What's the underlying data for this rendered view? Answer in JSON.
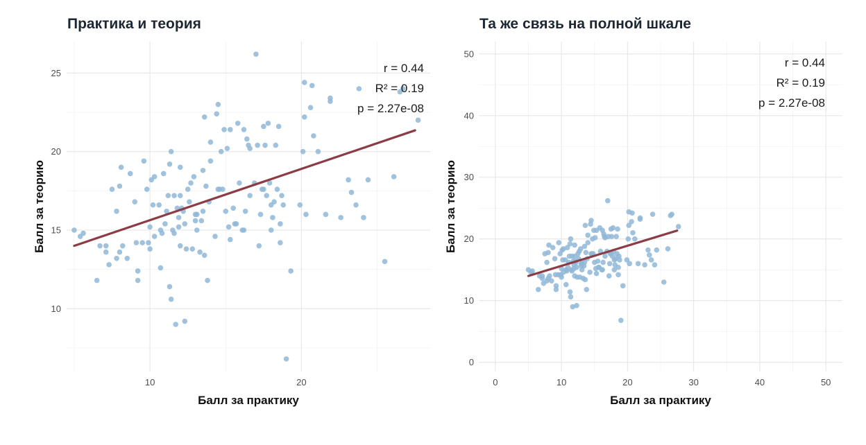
{
  "chart_data": [
    {
      "type": "scatter",
      "title": "Практика и теория",
      "xlabel": "Балл за практику",
      "ylabel": "Балл за теорию",
      "xlim": [
        4.5,
        28.5
      ],
      "ylim": [
        6,
        27
      ],
      "xticks": [
        10,
        20
      ],
      "yticks": [
        10,
        15,
        20,
        25
      ],
      "stats": [
        "r = 0.44",
        "R² = 0.19",
        "p = 2.27e-08"
      ],
      "fit_line": {
        "x": [
          5,
          27.5
        ],
        "y": [
          14.0,
          21.35
        ]
      },
      "points": [
        [
          5,
          15
        ],
        [
          5.4,
          14.6
        ],
        [
          5.6,
          14.8
        ],
        [
          6.5,
          11.8
        ],
        [
          6.7,
          14
        ],
        [
          7.1,
          13.6
        ],
        [
          7.1,
          14
        ],
        [
          7.3,
          12.8
        ],
        [
          7.5,
          17.6
        ],
        [
          7.8,
          13.2
        ],
        [
          7.8,
          16.2
        ],
        [
          8,
          17.8
        ],
        [
          8,
          13.6
        ],
        [
          8.1,
          19
        ],
        [
          8.2,
          14
        ],
        [
          8.5,
          13.2
        ],
        [
          8.7,
          18.6
        ],
        [
          9,
          16.8
        ],
        [
          9.1,
          14.2
        ],
        [
          9.2,
          12.4
        ],
        [
          9.2,
          11.8
        ],
        [
          9.5,
          14.2
        ],
        [
          9.6,
          19.4
        ],
        [
          9.8,
          17.6
        ],
        [
          9.9,
          14.2
        ],
        [
          10,
          15.2
        ],
        [
          10,
          13.8
        ],
        [
          10.1,
          18.2
        ],
        [
          10.2,
          16.6
        ],
        [
          10.3,
          18.4
        ],
        [
          10.3,
          14.6
        ],
        [
          10.6,
          16.6
        ],
        [
          10.7,
          12.6
        ],
        [
          10.7,
          15
        ],
        [
          10.8,
          14.8
        ],
        [
          10.9,
          18.6
        ],
        [
          11,
          15.4
        ],
        [
          11.1,
          16.2
        ],
        [
          11.2,
          17.2
        ],
        [
          11.3,
          11.4
        ],
        [
          11.3,
          19.2
        ],
        [
          11.4,
          10.6
        ],
        [
          11.4,
          20
        ],
        [
          11.5,
          15
        ],
        [
          11.6,
          14.8
        ],
        [
          11.6,
          17.2
        ],
        [
          11.7,
          9
        ],
        [
          11.8,
          16.4
        ],
        [
          11.9,
          15.2
        ],
        [
          11.9,
          15.8
        ],
        [
          12,
          17.2
        ],
        [
          12,
          19
        ],
        [
          12,
          14
        ],
        [
          12.1,
          16.4
        ],
        [
          12.2,
          16.2
        ],
        [
          12.3,
          15.4
        ],
        [
          12.3,
          9.2
        ],
        [
          12.4,
          13.8
        ],
        [
          12.5,
          17.6
        ],
        [
          12.6,
          16.8
        ],
        [
          12.7,
          18
        ],
        [
          12.8,
          13.8
        ],
        [
          12.9,
          18.4
        ],
        [
          13,
          16
        ],
        [
          13,
          15.6
        ],
        [
          13.1,
          15
        ],
        [
          13.1,
          16
        ],
        [
          13.3,
          13.6
        ],
        [
          13.4,
          15.6
        ],
        [
          13.5,
          16.2
        ],
        [
          13.5,
          18.8
        ],
        [
          13.6,
          13.4
        ],
        [
          13.6,
          22.2
        ],
        [
          13.7,
          17.8
        ],
        [
          13.8,
          11.8
        ],
        [
          13.9,
          16.8
        ],
        [
          14,
          19.4
        ],
        [
          14,
          20.6
        ],
        [
          14.3,
          14.6
        ],
        [
          14.4,
          22.4
        ],
        [
          14.5,
          23
        ],
        [
          14.5,
          17.6
        ],
        [
          14.6,
          17.6
        ],
        [
          14.7,
          20
        ],
        [
          14.8,
          17.6
        ],
        [
          14.9,
          21.4
        ],
        [
          15,
          16.2
        ],
        [
          15.1,
          20.2
        ],
        [
          15.2,
          15.2
        ],
        [
          15.3,
          14.4
        ],
        [
          15.3,
          21.4
        ],
        [
          15.5,
          16.4
        ],
        [
          15.6,
          15.4
        ],
        [
          15.7,
          15.4
        ],
        [
          15.8,
          21.8
        ],
        [
          15.9,
          18
        ],
        [
          16.1,
          15
        ],
        [
          16.2,
          21.4
        ],
        [
          16.2,
          15
        ],
        [
          16.3,
          16.2
        ],
        [
          16.4,
          20.8
        ],
        [
          16.5,
          20.4
        ],
        [
          16.6,
          17.2
        ],
        [
          16.6,
          20.2
        ],
        [
          16.9,
          18
        ],
        [
          17,
          26.2
        ],
        [
          17.1,
          20.4
        ],
        [
          17.2,
          14
        ],
        [
          17.3,
          16
        ],
        [
          17.4,
          17.6
        ],
        [
          17.5,
          17.6
        ],
        [
          17.5,
          21.6
        ],
        [
          17.6,
          20.4
        ],
        [
          17.7,
          17.2
        ],
        [
          17.8,
          21.8
        ],
        [
          17.9,
          18
        ],
        [
          18,
          16.6
        ],
        [
          18,
          15
        ],
        [
          18.1,
          15.8
        ],
        [
          18.2,
          16.8
        ],
        [
          18.3,
          20.4
        ],
        [
          18.4,
          17.6
        ],
        [
          18.5,
          21.6
        ],
        [
          18.6,
          14.2
        ],
        [
          18.6,
          15.4
        ],
        [
          18.7,
          17.2
        ],
        [
          18.8,
          16.6
        ],
        [
          19,
          6.8
        ],
        [
          19.3,
          12.4
        ],
        [
          19.9,
          16.6
        ],
        [
          20.1,
          20
        ],
        [
          20.2,
          22.2
        ],
        [
          20.2,
          24.4
        ],
        [
          20.3,
          16
        ],
        [
          20.6,
          22.8
        ],
        [
          20.7,
          24.2
        ],
        [
          20.8,
          21
        ],
        [
          21.1,
          20
        ],
        [
          21.6,
          16
        ],
        [
          21.9,
          23.4
        ],
        [
          21.9,
          23.2
        ],
        [
          22.6,
          15.8
        ],
        [
          23.1,
          18.2
        ],
        [
          23.3,
          17.4
        ],
        [
          23.6,
          16.6
        ],
        [
          23.8,
          24
        ],
        [
          24.1,
          15.8
        ],
        [
          24.4,
          18.2
        ],
        [
          25.5,
          13
        ],
        [
          26.1,
          18.4
        ],
        [
          26.5,
          23.8
        ],
        [
          26.7,
          24
        ],
        [
          27.7,
          22
        ]
      ]
    },
    {
      "type": "scatter",
      "title": "Та же связь на полной шкале",
      "xlabel": "Балл за практику",
      "ylabel": "Балл за теорию",
      "xlim": [
        -2.5,
        52.5
      ],
      "ylim": [
        -1.5,
        52
      ],
      "xticks": [
        0,
        10,
        20,
        30,
        40,
        50
      ],
      "yticks": [
        0,
        10,
        20,
        30,
        40,
        50
      ],
      "stats": [
        "r = 0.44",
        "R² = 0.19",
        "p = 2.27e-08"
      ],
      "fit_line": {
        "x": [
          5,
          27.5
        ],
        "y": [
          14.0,
          21.35
        ]
      }
    }
  ]
}
